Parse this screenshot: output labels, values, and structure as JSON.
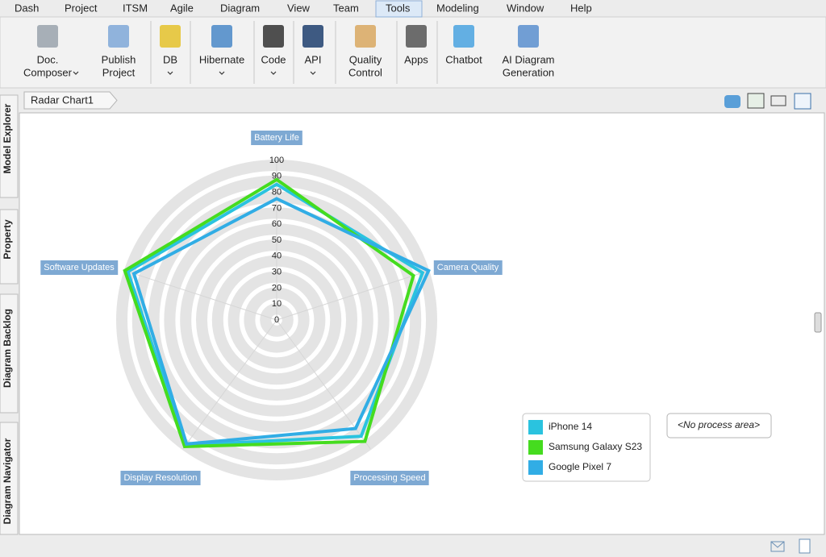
{
  "menu": [
    "Dash",
    "Project",
    "ITSM",
    "Agile",
    "Diagram",
    "View",
    "Team",
    "Tools",
    "Modeling",
    "Window",
    "Help"
  ],
  "toolbar": [
    {
      "lines": [
        "Doc.",
        "Composer"
      ],
      "dropdown": true
    },
    {
      "lines": [
        "Publish",
        "Project"
      ]
    },
    {
      "lines": [
        "DB"
      ],
      "dropdown": true
    },
    {
      "lines": [
        "Hibernate"
      ],
      "dropdown": true
    },
    {
      "lines": [
        "Code"
      ],
      "dropdown": true
    },
    {
      "lines": [
        "API"
      ],
      "dropdown": true
    },
    {
      "lines": [
        "Quality",
        "Control"
      ]
    },
    {
      "lines": [
        "Apps"
      ]
    },
    {
      "lines": [
        "Chatbot"
      ]
    },
    {
      "lines": [
        "AI Diagram",
        "Generation"
      ]
    }
  ],
  "breadcrumb": "Radar Chart1",
  "side_tabs": [
    "Model Explorer",
    "Property",
    "Diagram Backlog",
    "Diagram Navigator"
  ],
  "process_area": "<No process area>",
  "chart_data": {
    "type": "radar",
    "categories": [
      "Battery Life",
      "Camera Quality",
      "Processing Speed",
      "Display Resolution",
      "Software Updates"
    ],
    "series": [
      {
        "name": "iPhone 14",
        "color": "#2ac3df",
        "values": [
          85,
          96,
          90,
          97,
          98
        ]
      },
      {
        "name": "Samsung Galaxy S23",
        "color": "#45dc1f",
        "values": [
          88,
          90,
          94,
          98,
          100
        ]
      },
      {
        "name": "Google Pixel 7",
        "color": "#31ade5",
        "values": [
          76,
          100,
          84,
          96,
          94
        ]
      }
    ],
    "rlim": [
      0,
      100
    ],
    "rticks": [
      0,
      10,
      20,
      30,
      40,
      50,
      60,
      70,
      80,
      90,
      100
    ]
  }
}
